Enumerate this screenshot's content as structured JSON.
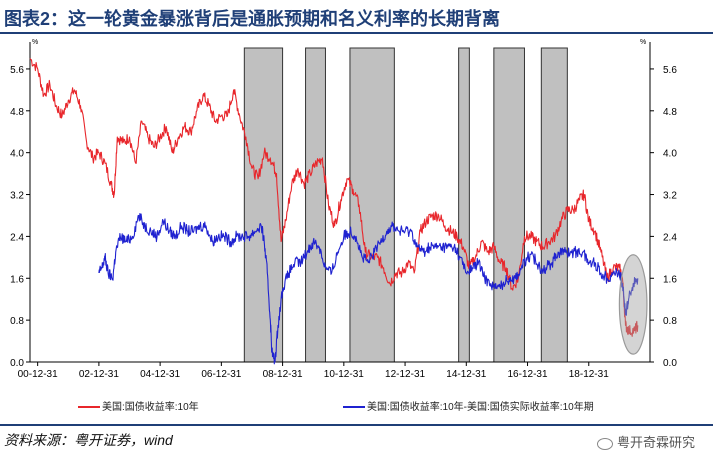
{
  "header": {
    "title": "图表2：这一轮黄金暴涨背后是通胀预期和名义利率的长期背离"
  },
  "footer": {
    "source": "资料来源：粤开证券，wind",
    "watermark": "粤开奇霖研究"
  },
  "colors": {
    "accent": "#1f3f77",
    "red_series": "#e8262b",
    "blue_series": "#1f22d0",
    "shade": "#c0c0c0",
    "ellipse": "#9a9a9a"
  },
  "chart_data": {
    "type": "line",
    "title": "",
    "y_unit_left": "%",
    "y_unit_right": "%",
    "ylim": [
      0.0,
      6.0
    ],
    "y_ticks": [
      "0.0",
      "0.8",
      "1.6",
      "2.4",
      "3.2",
      "4.0",
      "4.8",
      "5.6"
    ],
    "xlim": [
      2000.75,
      2021.0
    ],
    "x_ticks": [
      "00-12-31",
      "02-12-31",
      "04-12-31",
      "06-12-31",
      "08-12-31",
      "10-12-31",
      "12-12-31",
      "14-12-31",
      "16-12-31",
      "18-12-31"
    ],
    "x_tick_values": [
      2001.0,
      2003.0,
      2005.0,
      2007.0,
      2009.0,
      2011.0,
      2013.0,
      2015.0,
      2017.0,
      2019.0
    ],
    "grid": false,
    "legend_position": "bottom",
    "shaded_periods": [
      [
        2007.75,
        2009.0
      ],
      [
        2009.75,
        2010.4
      ],
      [
        2011.2,
        2012.65
      ],
      [
        2014.75,
        2015.1
      ],
      [
        2015.9,
        2016.9
      ],
      [
        2017.45,
        2018.3
      ]
    ],
    "highlight_ellipse": {
      "x_center": 2020.45,
      "y_center": 1.1,
      "x_radius": 0.45,
      "y_radius": 0.95
    },
    "series": [
      {
        "name": "美国:国债收益率:10年",
        "color": "#e8262b",
        "points": [
          [
            2000.75,
            5.8
          ],
          [
            2001.0,
            5.6
          ],
          [
            2001.2,
            5.1
          ],
          [
            2001.4,
            5.3
          ],
          [
            2001.6,
            4.9
          ],
          [
            2001.8,
            4.7
          ],
          [
            2002.0,
            5.0
          ],
          [
            2002.2,
            5.2
          ],
          [
            2002.4,
            4.9
          ],
          [
            2002.6,
            4.2
          ],
          [
            2002.8,
            3.9
          ],
          [
            2003.0,
            4.0
          ],
          [
            2003.2,
            3.8
          ],
          [
            2003.4,
            3.4
          ],
          [
            2003.5,
            3.2
          ],
          [
            2003.6,
            4.3
          ],
          [
            2003.8,
            4.2
          ],
          [
            2004.0,
            4.3
          ],
          [
            2004.2,
            3.8
          ],
          [
            2004.4,
            4.6
          ],
          [
            2004.6,
            4.3
          ],
          [
            2004.8,
            4.1
          ],
          [
            2005.0,
            4.3
          ],
          [
            2005.2,
            4.5
          ],
          [
            2005.4,
            4.0
          ],
          [
            2005.6,
            4.3
          ],
          [
            2005.8,
            4.5
          ],
          [
            2006.0,
            4.4
          ],
          [
            2006.2,
            4.8
          ],
          [
            2006.4,
            5.1
          ],
          [
            2006.6,
            4.9
          ],
          [
            2006.8,
            4.6
          ],
          [
            2007.0,
            4.7
          ],
          [
            2007.2,
            4.7
          ],
          [
            2007.4,
            5.2
          ],
          [
            2007.6,
            4.7
          ],
          [
            2007.8,
            4.3
          ],
          [
            2008.0,
            3.7
          ],
          [
            2008.2,
            3.5
          ],
          [
            2008.4,
            4.0
          ],
          [
            2008.6,
            3.9
          ],
          [
            2008.8,
            3.6
          ],
          [
            2008.95,
            2.3
          ],
          [
            2009.1,
            2.7
          ],
          [
            2009.3,
            3.4
          ],
          [
            2009.5,
            3.7
          ],
          [
            2009.7,
            3.4
          ],
          [
            2009.9,
            3.6
          ],
          [
            2010.1,
            3.8
          ],
          [
            2010.3,
            3.9
          ],
          [
            2010.5,
            3.0
          ],
          [
            2010.7,
            2.6
          ],
          [
            2010.9,
            3.1
          ],
          [
            2011.1,
            3.5
          ],
          [
            2011.3,
            3.3
          ],
          [
            2011.5,
            3.0
          ],
          [
            2011.7,
            2.1
          ],
          [
            2011.9,
            2.0
          ],
          [
            2012.1,
            2.0
          ],
          [
            2012.3,
            1.8
          ],
          [
            2012.5,
            1.5
          ],
          [
            2012.7,
            1.7
          ],
          [
            2012.9,
            1.7
          ],
          [
            2013.1,
            1.9
          ],
          [
            2013.3,
            1.7
          ],
          [
            2013.5,
            2.5
          ],
          [
            2013.7,
            2.7
          ],
          [
            2013.9,
            2.8
          ],
          [
            2014.1,
            2.8
          ],
          [
            2014.3,
            2.6
          ],
          [
            2014.5,
            2.5
          ],
          [
            2014.7,
            2.4
          ],
          [
            2014.9,
            2.2
          ],
          [
            2015.1,
            1.8
          ],
          [
            2015.3,
            2.0
          ],
          [
            2015.5,
            2.3
          ],
          [
            2015.7,
            2.1
          ],
          [
            2015.9,
            2.2
          ],
          [
            2016.1,
            1.9
          ],
          [
            2016.3,
            1.8
          ],
          [
            2016.5,
            1.4
          ],
          [
            2016.7,
            1.6
          ],
          [
            2016.9,
            2.4
          ],
          [
            2017.1,
            2.4
          ],
          [
            2017.3,
            2.3
          ],
          [
            2017.5,
            2.2
          ],
          [
            2017.7,
            2.3
          ],
          [
            2017.9,
            2.4
          ],
          [
            2018.1,
            2.7
          ],
          [
            2018.3,
            2.9
          ],
          [
            2018.5,
            2.9
          ],
          [
            2018.7,
            3.1
          ],
          [
            2018.85,
            3.2
          ],
          [
            2019.0,
            2.7
          ],
          [
            2019.2,
            2.5
          ],
          [
            2019.4,
            2.1
          ],
          [
            2019.6,
            1.6
          ],
          [
            2019.8,
            1.8
          ],
          [
            2020.0,
            1.8
          ],
          [
            2020.1,
            1.6
          ],
          [
            2020.2,
            0.7
          ],
          [
            2020.3,
            0.6
          ],
          [
            2020.5,
            0.6
          ],
          [
            2020.6,
            0.7
          ]
        ]
      },
      {
        "name": "美国:国债收益率:10年-美国:国债实际收益率:10年期",
        "color": "#1f22d0",
        "points": [
          [
            2003.0,
            1.7
          ],
          [
            2003.1,
            1.8
          ],
          [
            2003.2,
            2.0
          ],
          [
            2003.3,
            1.7
          ],
          [
            2003.45,
            1.6
          ],
          [
            2003.55,
            2.1
          ],
          [
            2003.7,
            2.4
          ],
          [
            2003.9,
            2.3
          ],
          [
            2004.1,
            2.4
          ],
          [
            2004.3,
            2.8
          ],
          [
            2004.5,
            2.6
          ],
          [
            2004.7,
            2.5
          ],
          [
            2004.9,
            2.4
          ],
          [
            2005.1,
            2.7
          ],
          [
            2005.3,
            2.5
          ],
          [
            2005.5,
            2.4
          ],
          [
            2005.7,
            2.6
          ],
          [
            2005.9,
            2.5
          ],
          [
            2006.1,
            2.5
          ],
          [
            2006.3,
            2.6
          ],
          [
            2006.5,
            2.6
          ],
          [
            2006.7,
            2.3
          ],
          [
            2006.9,
            2.4
          ],
          [
            2007.1,
            2.4
          ],
          [
            2007.3,
            2.3
          ],
          [
            2007.5,
            2.4
          ],
          [
            2007.7,
            2.4
          ],
          [
            2007.9,
            2.4
          ],
          [
            2008.1,
            2.5
          ],
          [
            2008.3,
            2.6
          ],
          [
            2008.4,
            2.3
          ],
          [
            2008.5,
            1.7
          ],
          [
            2008.6,
            0.8
          ],
          [
            2008.65,
            0.2
          ],
          [
            2008.75,
            0.0
          ],
          [
            2008.85,
            0.7
          ],
          [
            2009.0,
            1.4
          ],
          [
            2009.2,
            1.7
          ],
          [
            2009.4,
            1.9
          ],
          [
            2009.6,
            1.9
          ],
          [
            2009.8,
            2.1
          ],
          [
            2010.0,
            2.3
          ],
          [
            2010.2,
            2.2
          ],
          [
            2010.4,
            1.8
          ],
          [
            2010.6,
            1.7
          ],
          [
            2010.8,
            2.1
          ],
          [
            2011.0,
            2.4
          ],
          [
            2011.2,
            2.5
          ],
          [
            2011.4,
            2.4
          ],
          [
            2011.6,
            2.0
          ],
          [
            2011.8,
            1.9
          ],
          [
            2012.0,
            2.1
          ],
          [
            2012.2,
            2.3
          ],
          [
            2012.4,
            2.5
          ],
          [
            2012.6,
            2.6
          ],
          [
            2012.8,
            2.5
          ],
          [
            2013.0,
            2.5
          ],
          [
            2013.2,
            2.5
          ],
          [
            2013.4,
            2.2
          ],
          [
            2013.6,
            2.1
          ],
          [
            2013.8,
            2.2
          ],
          [
            2014.0,
            2.2
          ],
          [
            2014.2,
            2.2
          ],
          [
            2014.4,
            2.2
          ],
          [
            2014.6,
            2.2
          ],
          [
            2014.8,
            2.0
          ],
          [
            2015.0,
            1.7
          ],
          [
            2015.2,
            1.8
          ],
          [
            2015.4,
            1.9
          ],
          [
            2015.6,
            1.6
          ],
          [
            2015.8,
            1.5
          ],
          [
            2016.0,
            1.4
          ],
          [
            2016.2,
            1.5
          ],
          [
            2016.4,
            1.6
          ],
          [
            2016.6,
            1.6
          ],
          [
            2016.8,
            1.8
          ],
          [
            2017.0,
            2.0
          ],
          [
            2017.2,
            2.0
          ],
          [
            2017.4,
            1.8
          ],
          [
            2017.6,
            1.8
          ],
          [
            2017.8,
            1.9
          ],
          [
            2018.0,
            2.1
          ],
          [
            2018.2,
            2.1
          ],
          [
            2018.4,
            2.1
          ],
          [
            2018.6,
            2.1
          ],
          [
            2018.8,
            2.1
          ],
          [
            2019.0,
            1.9
          ],
          [
            2019.2,
            1.9
          ],
          [
            2019.4,
            1.7
          ],
          [
            2019.6,
            1.6
          ],
          [
            2019.8,
            1.7
          ],
          [
            2020.0,
            1.7
          ],
          [
            2020.1,
            1.5
          ],
          [
            2020.2,
            0.9
          ],
          [
            2020.3,
            1.2
          ],
          [
            2020.45,
            1.5
          ],
          [
            2020.6,
            1.6
          ]
        ]
      }
    ]
  }
}
